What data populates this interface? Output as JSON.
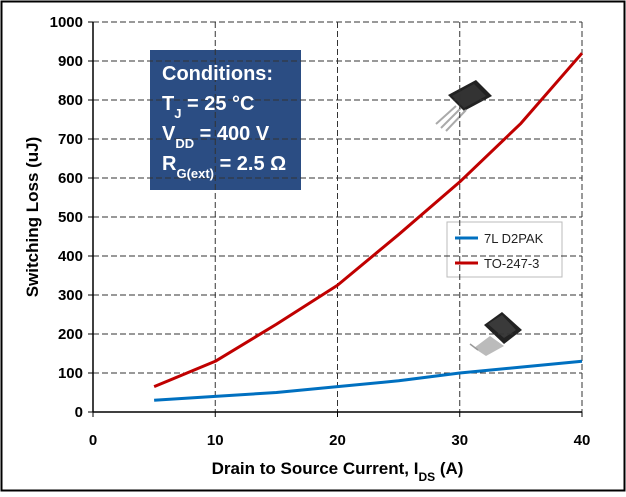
{
  "chart_data": {
    "type": "line",
    "x": [
      5,
      10,
      15,
      20,
      25,
      30,
      35,
      40
    ],
    "series": [
      {
        "name": "7L D2PAK",
        "color": "#0070c0",
        "values": [
          30,
          40,
          50,
          65,
          80,
          100,
          115,
          130
        ]
      },
      {
        "name": "TO-247-3",
        "color": "#c00000",
        "values": [
          65,
          130,
          225,
          325,
          455,
          590,
          740,
          920
        ]
      }
    ],
    "xlim": [
      0,
      40
    ],
    "xticks": [
      0,
      10,
      20,
      30,
      40
    ],
    "ylim": [
      0,
      1000
    ],
    "yticks": [
      0,
      100,
      200,
      300,
      400,
      500,
      600,
      700,
      800,
      900,
      1000
    ],
    "grid": true,
    "ylabel": "Switching Loss (uJ)",
    "xlabel": [
      "Drain to Source Current, I",
      "DS",
      " (A)"
    ],
    "conditions": {
      "title": "Conditions:",
      "lines": [
        [
          "T",
          "J",
          " = 25 °C"
        ],
        [
          "V",
          "DD",
          " = 400 V"
        ],
        [
          "R",
          "G(ext)",
          " = 2.5 Ω"
        ]
      ]
    }
  }
}
